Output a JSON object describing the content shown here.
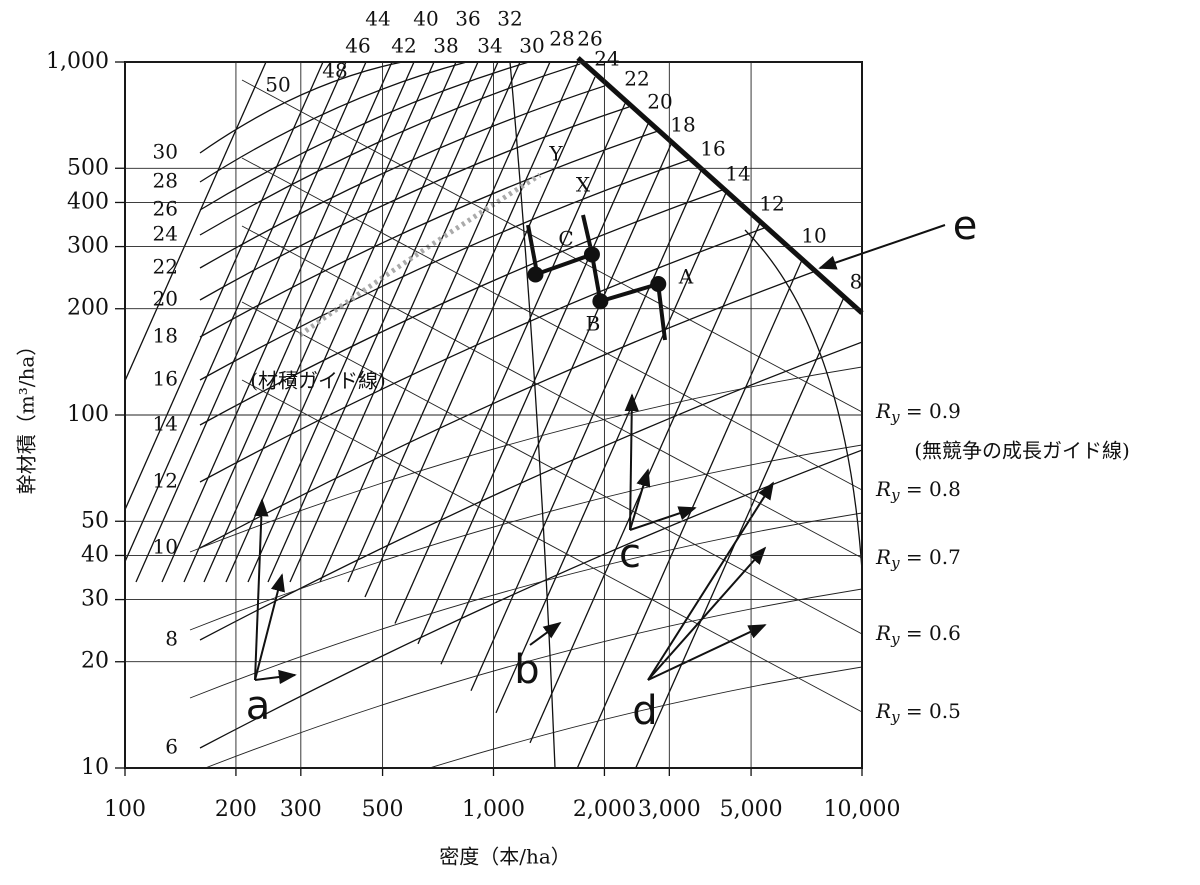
{
  "chart_data": {
    "type": "density-control",
    "x_label": "密度（本/ha）",
    "y_label": "幹材積（m³/ha）",
    "log_x": true,
    "log_y": true,
    "grid": true,
    "xlim": [
      100,
      10000
    ],
    "ylim": [
      10,
      1000
    ],
    "xticks": [
      100,
      200,
      300,
      500,
      {
        "value": 1000,
        "label": "1,000"
      },
      {
        "value": 2000,
        "label": "2,000"
      },
      {
        "value": 3000,
        "label": "3,000"
      },
      {
        "value": 5000,
        "label": "5,000"
      },
      {
        "value": 10000,
        "label": "10,000"
      }
    ],
    "yticks": [
      10,
      20,
      30,
      40,
      50,
      100,
      200,
      300,
      400,
      500,
      {
        "value": 1000,
        "label": "1,000"
      }
    ],
    "height_labels": [
      "30",
      "28",
      "26",
      "24",
      "22",
      "20",
      "18",
      "16",
      "14",
      "12",
      "10",
      "8",
      "6"
    ],
    "diameter_labels": [
      "44",
      "40",
      "36",
      "32",
      "46",
      "42",
      "38",
      "34",
      "30",
      "28",
      "26",
      "24",
      "22",
      "20",
      "18",
      "16",
      "14",
      "12",
      "10",
      "8",
      "50",
      "48"
    ],
    "ry_labels": [
      "Ry = 0.9",
      "Ry = 0.8",
      "Ry = 0.7",
      "Ry = 0.6",
      "Ry = 0.5"
    ],
    "volume_guide_label": "(材積ガイド線)",
    "growth_guide_label": "(無競争の成長ガイド線)",
    "callouts": [
      "a",
      "b",
      "c",
      "d",
      "e"
    ],
    "point_labels": [
      "C",
      "B",
      "A",
      "X",
      "Y"
    ],
    "path": {
      "x": [
        1300,
        1850,
        1950,
        2800
      ],
      "values": [
        250,
        285,
        210,
        235
      ]
    }
  }
}
